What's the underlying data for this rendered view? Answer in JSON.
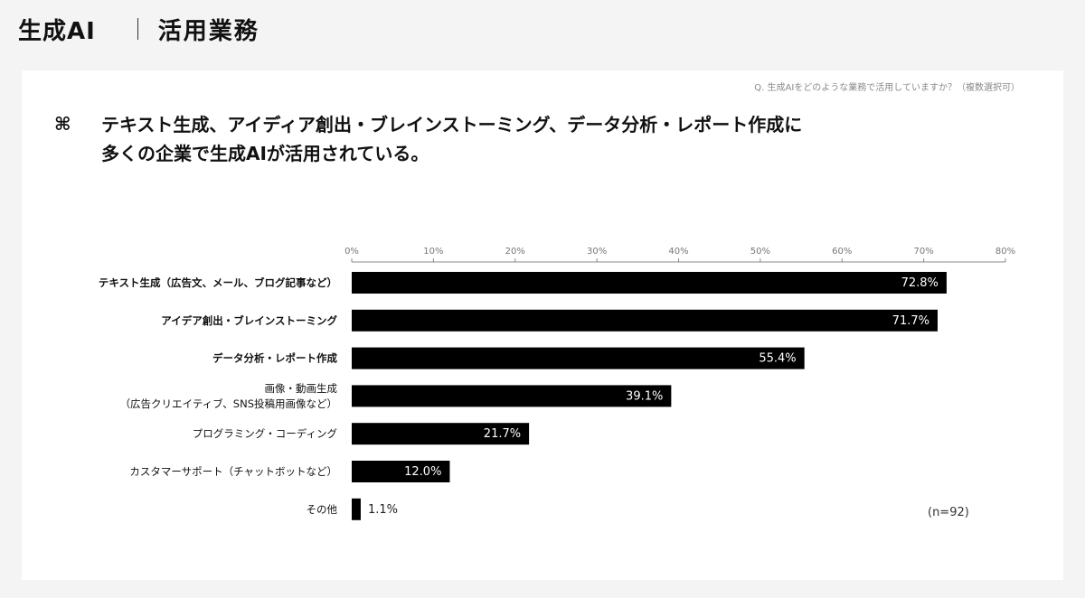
{
  "header": {
    "title": "生成AI",
    "subtitle": "活用業務"
  },
  "question": "Q. 生成AIをどのような業務で活用していますか？（複数選択可）",
  "headline": {
    "icon": "command-icon",
    "symbol": "⌘",
    "lines": [
      "テキスト生成、アイディア創出・ブレインストーミング、データ分析・レポート作成に",
      "多くの企業で生成AIが活用されている。"
    ]
  },
  "sample_size": "(n=92)",
  "colors": {
    "bar": "#000000",
    "bar_label": "#ffffff",
    "axis": "#888888"
  },
  "chart_data": {
    "type": "bar",
    "orientation": "horizontal",
    "title": "",
    "xlabel": "",
    "ylabel": "",
    "xlim": [
      0,
      80
    ],
    "xticks": [
      "0%",
      "10%",
      "20%",
      "30%",
      "40%",
      "50%",
      "60%",
      "70%",
      "80%"
    ],
    "tick_position": "top",
    "grid": false,
    "categories": [
      [
        "テキスト生成（広告文、メール、ブログ記事など）"
      ],
      [
        "アイデア創出・ブレインストーミング"
      ],
      [
        "データ分析・レポート作成"
      ],
      [
        "画像・動画生成",
        "（広告クリエイティブ、SNS投稿用画像など）"
      ],
      [
        "プログラミング・コーディング"
      ],
      [
        "カスタマーサポート（チャットボットなど）"
      ],
      [
        "その他"
      ]
    ],
    "bold_categories": [
      true,
      true,
      true,
      false,
      false,
      false,
      false
    ],
    "values": [
      72.8,
      71.7,
      55.4,
      39.1,
      21.7,
      12.0,
      1.1
    ],
    "value_labels": [
      "72.8%",
      "71.7%",
      "55.4%",
      "39.1%",
      "21.7%",
      "12.0%",
      "1.1%"
    ]
  }
}
